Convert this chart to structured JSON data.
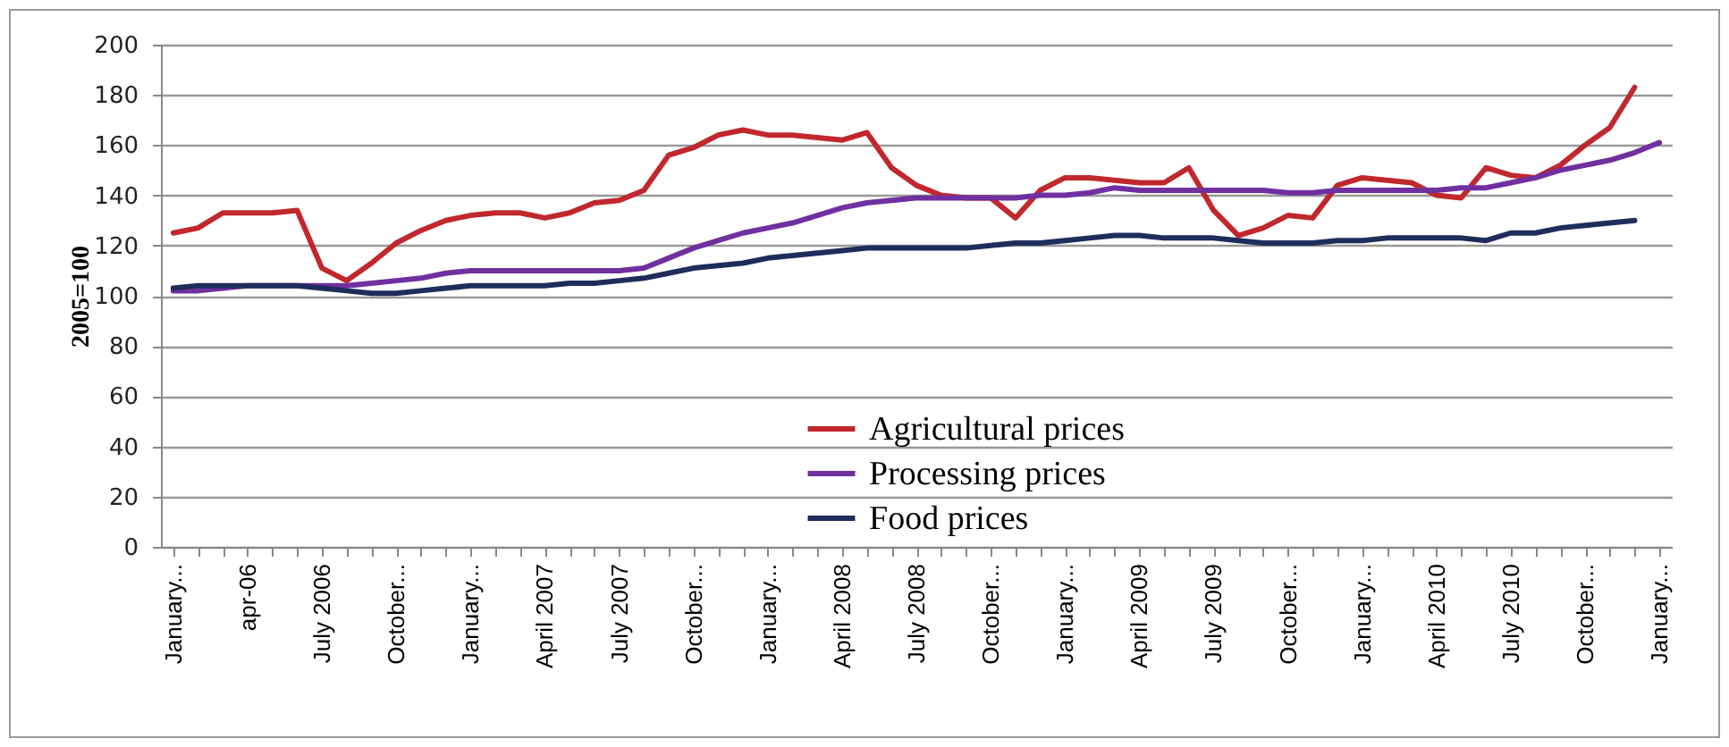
{
  "chart_data": {
    "type": "line",
    "ylabel": "2005=100",
    "categories": [
      "January...",
      null,
      null,
      "apr-06",
      null,
      null,
      "July 2006",
      null,
      null,
      "October...",
      null,
      null,
      "January...",
      null,
      null,
      "April 2007",
      null,
      null,
      "July 2007",
      null,
      null,
      "October...",
      null,
      null,
      "January...",
      null,
      null,
      "April 2008",
      null,
      null,
      "July 2008",
      null,
      null,
      "October...",
      null,
      null,
      "January...",
      null,
      null,
      "April 2009",
      null,
      null,
      "July 2009",
      null,
      null,
      "October...",
      null,
      null,
      "January...",
      null,
      null,
      "April 2010",
      null,
      null,
      "July 2010",
      null,
      null,
      "October...",
      null,
      null,
      "January..."
    ],
    "series": [
      {
        "name": "Agricultural prices",
        "color": "#c0282d",
        "values": [
          125,
          127,
          133,
          133,
          133,
          134,
          111,
          106,
          113,
          121,
          126,
          130,
          132,
          133,
          133,
          131,
          133,
          137,
          138,
          142,
          156,
          159,
          164,
          166,
          164,
          164,
          163,
          162,
          165,
          151,
          144,
          140,
          139,
          139,
          131,
          142,
          147,
          147,
          146,
          145,
          145,
          151,
          134,
          124,
          127,
          132,
          131,
          144,
          147,
          146,
          145,
          140,
          139,
          151,
          148,
          147,
          152,
          160,
          167,
          183,
          null
        ]
      },
      {
        "name": "Processing prices",
        "color": "#7030a0",
        "values": [
          102,
          102,
          103,
          104,
          104,
          104,
          104,
          104,
          105,
          106,
          107,
          109,
          110,
          110,
          110,
          110,
          110,
          110,
          110,
          111,
          115,
          119,
          122,
          125,
          127,
          129,
          132,
          135,
          137,
          138,
          139,
          139,
          139,
          139,
          139,
          140,
          140,
          141,
          143,
          142,
          142,
          142,
          142,
          142,
          142,
          141,
          141,
          142,
          142,
          142,
          142,
          142,
          143,
          143,
          145,
          147,
          150,
          152,
          154,
          157,
          161
        ]
      },
      {
        "name": "Food prices",
        "color": "#1f2d5c",
        "values": [
          103,
          104,
          104,
          104,
          104,
          104,
          103,
          102,
          101,
          101,
          102,
          103,
          104,
          104,
          104,
          104,
          105,
          105,
          106,
          107,
          109,
          111,
          112,
          113,
          115,
          116,
          117,
          118,
          119,
          119,
          119,
          119,
          119,
          120,
          121,
          121,
          122,
          123,
          124,
          124,
          123,
          123,
          123,
          122,
          121,
          121,
          121,
          122,
          122,
          123,
          123,
          123,
          123,
          122,
          125,
          125,
          127,
          128,
          129,
          130,
          null
        ]
      }
    ],
    "ylim": [
      0,
      200
    ],
    "yticks": [
      0,
      20,
      40,
      60,
      80,
      100,
      120,
      140,
      160,
      180,
      200
    ],
    "grid": "y",
    "legend": "bottom",
    "marker": "none",
    "line_style": "solid"
  }
}
